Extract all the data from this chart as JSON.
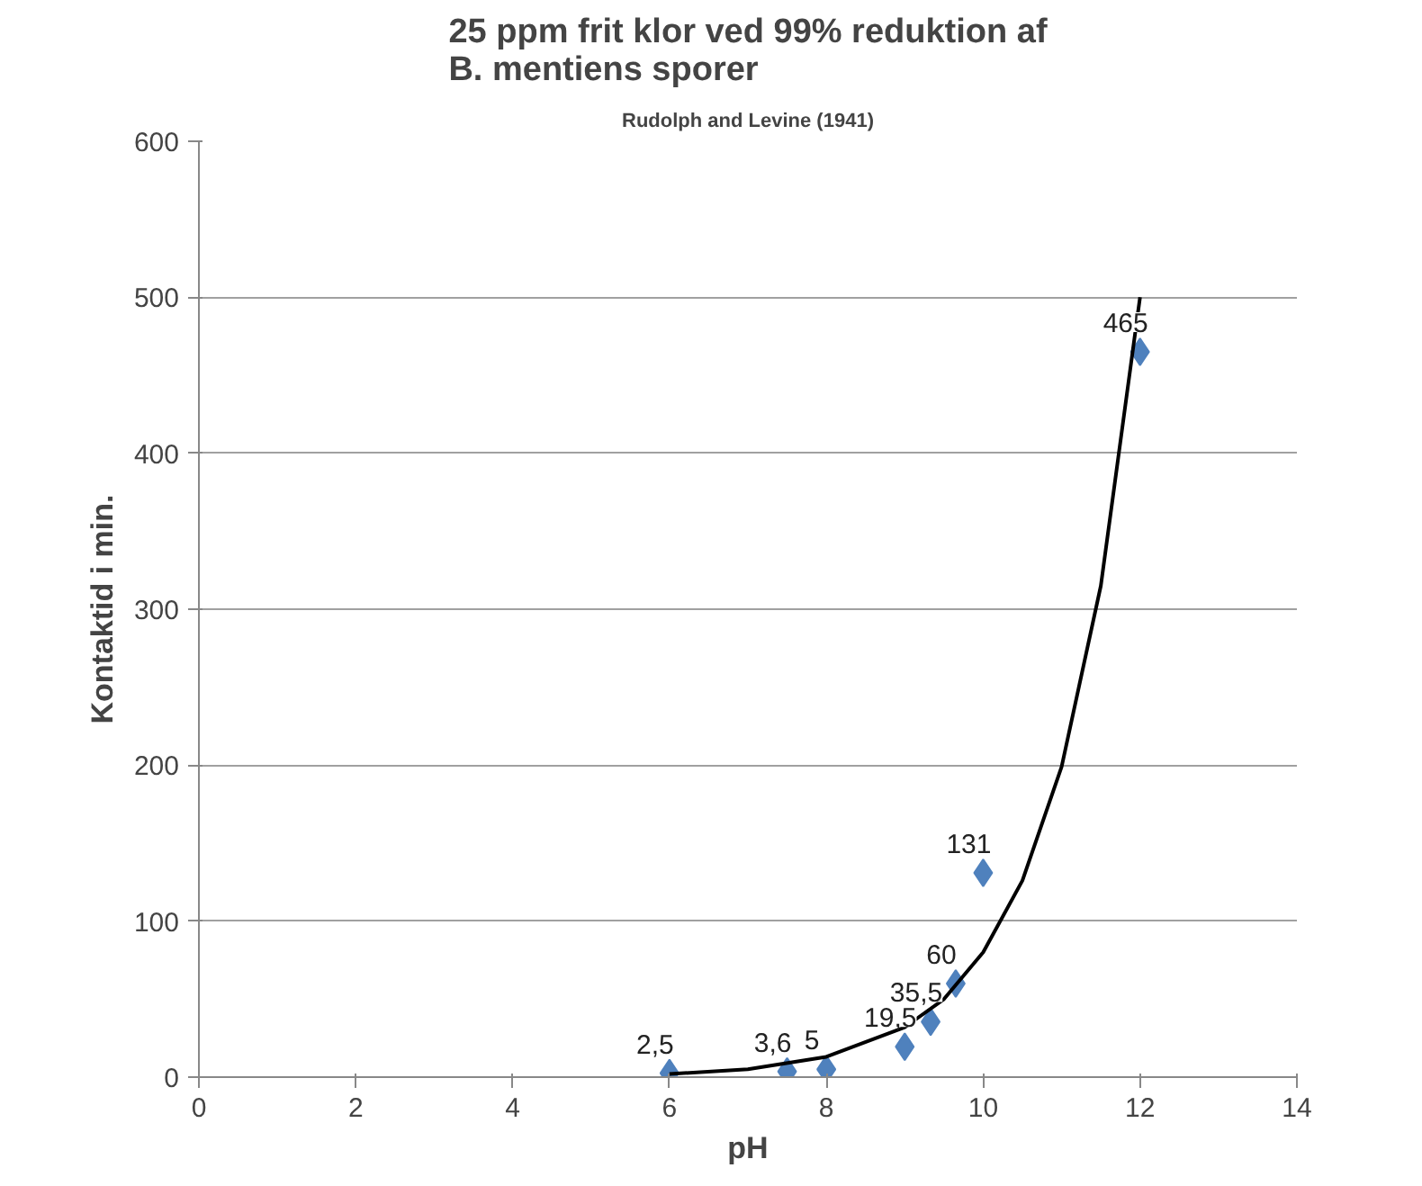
{
  "chart_data": {
    "type": "scatter",
    "title": "25 ppm frit klor ved 99% reduktion af\nB. mentiens sporer",
    "subtitle": "Rudolph and Levine (1941)",
    "xlabel": "pH",
    "ylabel": "Kontaktid i min.",
    "xlim": [
      0,
      14
    ],
    "xticks": [
      0,
      2,
      4,
      6,
      8,
      10,
      12,
      14
    ],
    "ylim": [
      0,
      600
    ],
    "yticks": [
      0,
      100,
      200,
      300,
      400,
      500,
      600
    ],
    "grid": "y",
    "series": [
      {
        "type": "scatter",
        "color": "#4f81bd",
        "marker": "diamond",
        "x": [
          6,
          7.5,
          8,
          9,
          9.33,
          9.65,
          10,
          12
        ],
        "values": [
          2.5,
          3.6,
          5,
          19.5,
          35.5,
          60,
          131,
          465
        ],
        "value_labels": [
          "2,5",
          "3,6",
          "5",
          "19,5",
          "35,5",
          "60",
          "131",
          "465"
        ]
      },
      {
        "type": "line",
        "color": "#000000",
        "line_style": "solid",
        "marker": "none",
        "x": [
          6,
          7,
          8,
          9,
          9.5,
          10,
          10.5,
          11,
          11.5,
          12
        ],
        "values": [
          2,
          5,
          13,
          32,
          50,
          80,
          126,
          199,
          315,
          500
        ]
      }
    ]
  }
}
